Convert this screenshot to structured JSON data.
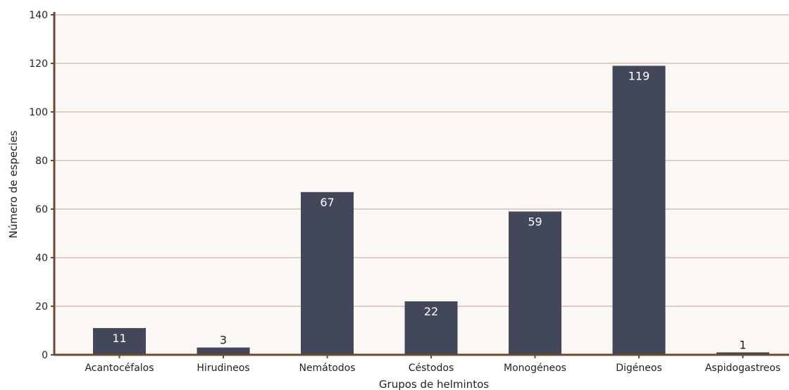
{
  "chart_data": {
    "type": "bar",
    "categories": [
      "Acantocéfalos",
      "Hirudineos",
      "Nemátodos",
      "Céstodos",
      "Monogéneos",
      "Digéneos",
      "Aspidogastreos"
    ],
    "values": [
      11,
      3,
      67,
      22,
      59,
      119,
      1
    ],
    "data_labels": [
      "11",
      "3",
      "67",
      "22",
      "59",
      "119",
      "1"
    ],
    "title": "",
    "xlabel": "Grupos de helmintos",
    "ylabel": "Número de especies",
    "ylim": [
      0,
      140
    ],
    "yticks": [
      "0",
      "20",
      "40",
      "60",
      "80",
      "100",
      "120",
      "140"
    ],
    "grid": true,
    "legend": "none",
    "colors": {
      "bar": "#424759",
      "plot_background": "#faf7f4",
      "grid": "#c8a38a",
      "axis": "#6b4a33",
      "label_inside": "#ffffff",
      "label_outside": "#222222"
    }
  }
}
